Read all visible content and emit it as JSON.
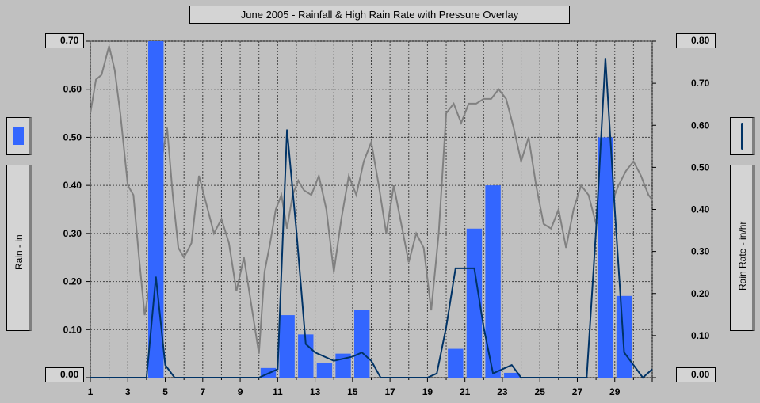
{
  "title": "June 2005 - Rainfall & High Rain Rate with Pressure Overlay",
  "left_axis_label": "Rain - in",
  "right_axis_label": "Rain Rate - in/hr",
  "left_axis_top": "0.70",
  "left_axis_bottom": "0.00",
  "right_axis_top": "0.80",
  "right_axis_bottom": "0.00",
  "colors": {
    "background": "#c0c0c0",
    "bars": "#3366ff",
    "rate_line": "#003366",
    "pressure_line": "#808080",
    "grid": "#404040"
  },
  "chart_data": {
    "type": "bar",
    "title": "June 2005 - Rainfall & High Rain Rate with Pressure Overlay",
    "xlim": [
      1,
      31
    ],
    "x_ticks": [
      1,
      3,
      5,
      7,
      9,
      11,
      13,
      15,
      17,
      19,
      21,
      23,
      25,
      27,
      29
    ],
    "left_axis": {
      "label": "Rain - in",
      "ylim": [
        0,
        0.7
      ],
      "ticks": [
        "0.00",
        "0.10",
        "0.20",
        "0.30",
        "0.40",
        "0.50",
        "0.60",
        "0.70"
      ]
    },
    "right_axis": {
      "label": "Rain Rate - in/hr",
      "ylim": [
        0,
        0.8
      ],
      "ticks": [
        "0.00",
        "0.10",
        "0.20",
        "0.30",
        "0.40",
        "0.50",
        "0.60",
        "0.70",
        "0.80"
      ]
    },
    "grid": true,
    "series": [
      {
        "name": "Rain - in",
        "kind": "bar",
        "axis": "left",
        "color": "#3366ff",
        "x": [
          4.5,
          10.5,
          11.5,
          12.5,
          13.5,
          14.5,
          15.5,
          20.5,
          21.5,
          22.5,
          23.5,
          28.5,
          29.5
        ],
        "values": [
          0.7,
          0.02,
          0.13,
          0.09,
          0.03,
          0.05,
          0.14,
          0.06,
          0.31,
          0.4,
          0.01,
          0.5,
          0.17
        ]
      },
      {
        "name": "Rain Rate - in/hr",
        "kind": "line",
        "axis": "right",
        "color": "#003366",
        "x": [
          1,
          3.5,
          4,
          4.5,
          5,
          5.5,
          6,
          9.5,
          10,
          10.5,
          11,
          11.5,
          12,
          12.5,
          13,
          14,
          15,
          15.5,
          16,
          16.5,
          17,
          18,
          19,
          19.5,
          20,
          20.5,
          21,
          21.5,
          22,
          22.5,
          23,
          23.5,
          24,
          24.5,
          27.5,
          28,
          28.5,
          29,
          29.5,
          30,
          30.5,
          31
        ],
        "values": [
          0.0,
          0.0,
          0.0,
          0.24,
          0.03,
          0.0,
          0.0,
          0.0,
          0.0,
          0.01,
          0.02,
          0.59,
          0.35,
          0.08,
          0.06,
          0.04,
          0.05,
          0.06,
          0.04,
          0.0,
          0.0,
          0.0,
          0.0,
          0.01,
          0.12,
          0.26,
          0.26,
          0.26,
          0.12,
          0.01,
          0.02,
          0.03,
          0.0,
          0.0,
          0.0,
          0.35,
          0.76,
          0.4,
          0.06,
          0.03,
          0.0,
          0.02
        ]
      },
      {
        "kind": "line",
        "axis": "left",
        "color": "#808080",
        "x": [
          1,
          1.3,
          1.6,
          2,
          2.3,
          2.6,
          3,
          3.3,
          3.6,
          3.9,
          4.2,
          4.5,
          4.8,
          5.1,
          5.4,
          5.7,
          6,
          6.4,
          6.8,
          7.2,
          7.6,
          8,
          8.4,
          8.8,
          9.2,
          9.6,
          10,
          10.3,
          10.6,
          10.9,
          11.2,
          11.5,
          11.8,
          12.1,
          12.4,
          12.8,
          13.2,
          13.6,
          14,
          14.4,
          14.8,
          15.2,
          15.6,
          16,
          16.4,
          16.8,
          17.2,
          17.6,
          18,
          18.4,
          18.8,
          19.2,
          19.6,
          20,
          20.4,
          20.8,
          21.2,
          21.6,
          22,
          22.4,
          22.8,
          23.2,
          23.6,
          24,
          24.4,
          24.8,
          25.2,
          25.6,
          26,
          26.4,
          26.8,
          27.2,
          27.6,
          28,
          28.4,
          28.8,
          29.2,
          29.6,
          30,
          30.4,
          30.8,
          31
        ],
        "values": [
          0.55,
          0.62,
          0.63,
          0.69,
          0.64,
          0.55,
          0.4,
          0.38,
          0.25,
          0.13,
          0.2,
          0.4,
          0.45,
          0.52,
          0.38,
          0.27,
          0.25,
          0.28,
          0.42,
          0.36,
          0.3,
          0.33,
          0.28,
          0.18,
          0.25,
          0.15,
          0.05,
          0.22,
          0.28,
          0.35,
          0.38,
          0.31,
          0.38,
          0.41,
          0.39,
          0.38,
          0.42,
          0.35,
          0.22,
          0.33,
          0.42,
          0.38,
          0.45,
          0.49,
          0.4,
          0.3,
          0.4,
          0.32,
          0.24,
          0.3,
          0.27,
          0.14,
          0.3,
          0.55,
          0.57,
          0.53,
          0.57,
          0.57,
          0.58,
          0.58,
          0.6,
          0.58,
          0.52,
          0.45,
          0.5,
          0.4,
          0.32,
          0.31,
          0.35,
          0.27,
          0.35,
          0.4,
          0.38,
          0.32,
          0.33,
          0.36,
          0.4,
          0.43,
          0.45,
          0.42,
          0.38,
          0.37
        ]
      }
    ]
  }
}
